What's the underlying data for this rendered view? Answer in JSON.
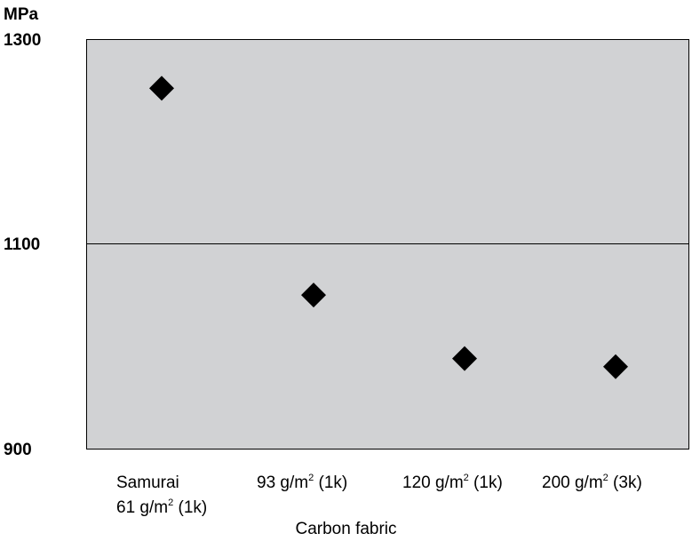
{
  "chart_data": {
    "type": "scatter",
    "title": "",
    "y_unit": "MPa",
    "xlabel": "Carbon fabric",
    "ylabel": "",
    "ylim": [
      900,
      1300
    ],
    "y_ticks": [
      "1300",
      "1100",
      "900"
    ],
    "categories": [
      {
        "line1_pre": "Samurai",
        "line1_sup": "",
        "line1_post": "",
        "line2_pre": "61 g/m",
        "line2_sup": "2",
        "line2_post": " (1k)"
      },
      {
        "line1_pre": "93 g/m",
        "line1_sup": "2",
        "line1_post": " (1k)",
        "line2_pre": "",
        "line2_sup": "",
        "line2_post": ""
      },
      {
        "line1_pre": "120 g/m",
        "line1_sup": "2",
        "line1_post": " (1k)",
        "line2_pre": "",
        "line2_sup": "",
        "line2_post": ""
      },
      {
        "line1_pre": "200 g/m",
        "line1_sup": "2",
        "line1_post": " (3k)",
        "line2_pre": "",
        "line2_sup": "",
        "line2_post": ""
      }
    ],
    "values": [
      1252,
      1050,
      988,
      980
    ],
    "marker": "diamond",
    "marker_color": "#000000",
    "plot_background": "#d1d2d4",
    "gridlines": [
      1100
    ]
  }
}
